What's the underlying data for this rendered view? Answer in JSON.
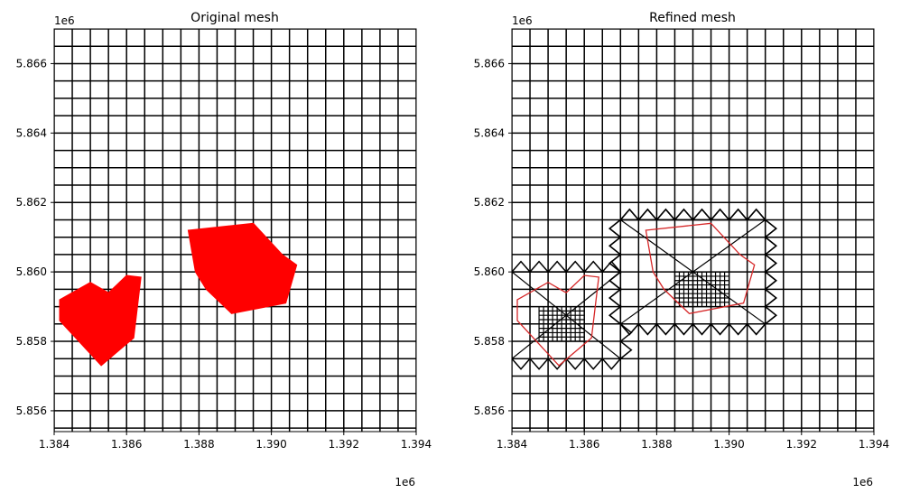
{
  "chart_data": [
    {
      "type": "mesh",
      "title": "Original mesh",
      "xlim": [
        1384000,
        1394000
      ],
      "ylim": [
        5855400,
        5867000
      ],
      "x_ticks": [
        1384000,
        1386000,
        1388000,
        1390000,
        1392000,
        1394000
      ],
      "x_tick_labels": [
        "1.384",
        "1.386",
        "1.388",
        "1.390",
        "1.392",
        "1.394"
      ],
      "y_ticks": [
        5856000,
        5858000,
        5860000,
        5862000,
        5864000,
        5866000
      ],
      "y_tick_labels": [
        "5.856",
        "5.858",
        "5.860",
        "5.862",
        "5.864",
        "5.866"
      ],
      "x_offset_label": "1e6",
      "y_offset_label": "1e6",
      "grid_x_start": 1384000,
      "grid_x_step": 500,
      "grid_y_start": 5855500,
      "grid_y_step": 500,
      "mesh_color": "#000000",
      "polygon_color": "#ff0000",
      "polygon_fill": true,
      "polygons": [
        [
          [
            1384150,
            5859200
          ],
          [
            1385000,
            5859700
          ],
          [
            1385500,
            5859400
          ],
          [
            1386000,
            5859900
          ],
          [
            1386400,
            5859850
          ],
          [
            1386200,
            5858100
          ],
          [
            1385300,
            5857300
          ],
          [
            1384150,
            5858600
          ]
        ],
        [
          [
            1387700,
            5861200
          ],
          [
            1389500,
            5861400
          ],
          [
            1390300,
            5860500
          ],
          [
            1390700,
            5860200
          ],
          [
            1390400,
            5859100
          ],
          [
            1388900,
            5858800
          ],
          [
            1388200,
            5859500
          ],
          [
            1387900,
            5860000
          ]
        ]
      ]
    },
    {
      "type": "mesh",
      "title": "Refined mesh",
      "xlim": [
        1384000,
        1394000
      ],
      "ylim": [
        5855400,
        5867000
      ],
      "x_ticks": [
        1384000,
        1386000,
        1388000,
        1390000,
        1392000,
        1394000
      ],
      "x_tick_labels": [
        "1.384",
        "1.386",
        "1.388",
        "1.390",
        "1.392",
        "1.394"
      ],
      "y_ticks": [
        5856000,
        5858000,
        5860000,
        5862000,
        5864000,
        5866000
      ],
      "y_tick_labels": [
        "5.856",
        "5.858",
        "5.860",
        "5.862",
        "5.864",
        "5.866"
      ],
      "x_offset_label": "1e6",
      "y_offset_label": "1e6",
      "grid_x_start": 1384000,
      "grid_x_step": 500,
      "grid_y_start": 5855500,
      "grid_y_step": 500,
      "mesh_color": "#000000",
      "polygon_color": "#d62728",
      "polygon_fill": false,
      "polygons": [
        [
          [
            1384150,
            5859200
          ],
          [
            1385000,
            5859700
          ],
          [
            1385500,
            5859400
          ],
          [
            1386000,
            5859900
          ],
          [
            1386400,
            5859850
          ],
          [
            1386200,
            5858100
          ],
          [
            1385300,
            5857300
          ],
          [
            1384150,
            5858600
          ]
        ],
        [
          [
            1387700,
            5861200
          ],
          [
            1389500,
            5861400
          ],
          [
            1390300,
            5860500
          ],
          [
            1390700,
            5860200
          ],
          [
            1390400,
            5859100
          ],
          [
            1388900,
            5858800
          ],
          [
            1388200,
            5859500
          ],
          [
            1387900,
            5860000
          ]
        ]
      ],
      "refined_regions": [
        {
          "x": [
            1384000,
            1387000
          ],
          "y": [
            5857500,
            5860000
          ],
          "fine_x": [
            1384750,
            1386000
          ],
          "fine_y": [
            5858000,
            5859000
          ],
          "fine_step": 125
        },
        {
          "x": [
            1387000,
            1391000
          ],
          "y": [
            5858500,
            5861500
          ],
          "fine_x": [
            1388000,
            1389500
          ],
          "fine_y": [
            5859500,
            5860500
          ],
          "fine_step": 125
        },
        {
          "x": [
            1387000,
            1391000
          ],
          "y": [
            5858500,
            5861500
          ],
          "fine_x": [
            1388500,
            1390000
          ],
          "fine_y": [
            5859000,
            5860000
          ],
          "fine_step": 125
        }
      ]
    }
  ]
}
